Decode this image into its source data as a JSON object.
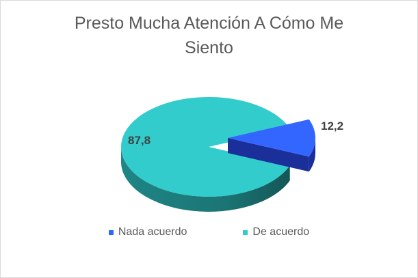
{
  "chart_data": {
    "type": "pie",
    "style": "3d-exploded",
    "title": "Presto Mucha Atención A Cómo Me\nSiento",
    "categories": [
      "Nada acuerdo",
      "De acuerdo"
    ],
    "values": [
      12.2,
      87.8
    ],
    "value_labels": [
      "12,2",
      "87,8"
    ],
    "colors": [
      "#3366ff",
      "#33cccc"
    ],
    "side_colors": [
      "#1a2f99",
      "#1f8585"
    ],
    "legend_position": "bottom",
    "exploded_slice": "Nada acuerdo"
  }
}
